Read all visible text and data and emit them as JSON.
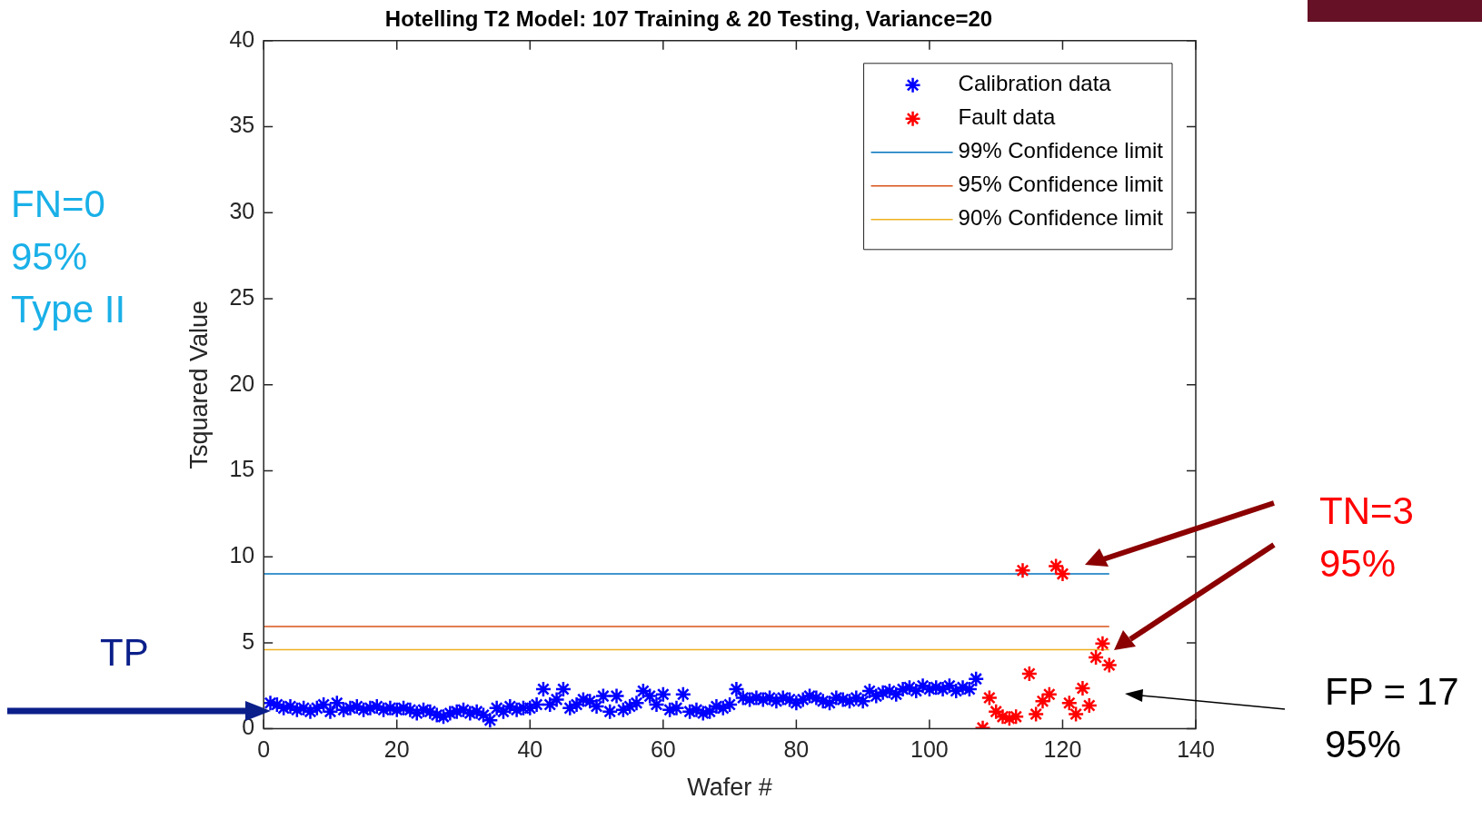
{
  "chart_data": {
    "type": "scatter",
    "title": "Hotelling T2 Model: 107 Training & 20 Testing, Variance=20",
    "xlabel": "Wafer #",
    "ylabel": "Tsquared Value",
    "xlim": [
      0,
      140
    ],
    "xticks": [
      0,
      20,
      40,
      60,
      80,
      100,
      120,
      140
    ],
    "ylim": [
      0,
      40
    ],
    "yticks": [
      0,
      5,
      10,
      15,
      20,
      25,
      30,
      35,
      40
    ],
    "legend": "top right",
    "series": [
      {
        "name": "Calibration data",
        "type": "scatter",
        "marker": "cross",
        "color": "#0000ff",
        "x": [
          1,
          2,
          3,
          4,
          5,
          6,
          7,
          8,
          9,
          10,
          11,
          12,
          13,
          14,
          15,
          16,
          17,
          18,
          19,
          20,
          21,
          22,
          23,
          24,
          25,
          26,
          27,
          28,
          29,
          30,
          31,
          32,
          33,
          34,
          35,
          36,
          37,
          38,
          39,
          40,
          41,
          42,
          43,
          44,
          45,
          46,
          47,
          48,
          49,
          50,
          51,
          52,
          53,
          54,
          55,
          56,
          57,
          58,
          59,
          60,
          61,
          62,
          63,
          64,
          65,
          66,
          67,
          68,
          69,
          70,
          71,
          72,
          73,
          74,
          75,
          76,
          77,
          78,
          79,
          80,
          81,
          82,
          83,
          84,
          85,
          86,
          87,
          88,
          89,
          90,
          91,
          92,
          93,
          94,
          95,
          96,
          97,
          98,
          99,
          100,
          101,
          102,
          103,
          104,
          105,
          106,
          107
        ],
        "values": [
          1.5,
          1.4,
          1.2,
          1.3,
          1.1,
          1.2,
          1.0,
          1.2,
          1.4,
          1.0,
          1.5,
          1.1,
          1.2,
          1.3,
          1.1,
          1.2,
          1.3,
          1.1,
          1.2,
          1.1,
          1.2,
          1.1,
          0.9,
          1.1,
          1.0,
          0.8,
          0.7,
          0.9,
          1.0,
          1.1,
          0.9,
          1.0,
          0.8,
          0.5,
          1.2,
          1.0,
          1.3,
          1.1,
          1.2,
          1.2,
          1.4,
          2.3,
          1.4,
          1.7,
          2.3,
          1.2,
          1.4,
          1.7,
          1.6,
          1.3,
          1.9,
          1.0,
          1.9,
          1.1,
          1.3,
          1.5,
          2.2,
          1.9,
          1.4,
          2.0,
          1.1,
          1.2,
          2.0,
          1.0,
          1.1,
          0.9,
          1.0,
          1.3,
          1.2,
          1.4,
          2.3,
          1.8,
          1.7,
          1.8,
          1.7,
          1.8,
          1.6,
          1.8,
          1.7,
          1.5,
          1.7,
          1.9,
          1.8,
          1.6,
          1.5,
          1.8,
          1.7,
          1.6,
          1.8,
          1.6,
          2.2,
          1.9,
          2.1,
          2.2,
          2.0,
          2.3,
          2.4,
          2.2,
          2.5,
          2.3,
          2.4,
          2.3,
          2.5,
          2.2,
          2.4,
          2.3,
          2.9
        ]
      },
      {
        "name": "Fault data",
        "type": "scatter",
        "marker": "cross",
        "color": "#ff0000",
        "x": [
          108,
          109,
          110,
          111,
          112,
          113,
          114,
          115,
          116,
          117,
          118,
          119,
          120,
          121,
          122,
          123,
          124,
          125,
          126,
          127
        ],
        "values": [
          0.05,
          1.8,
          1.0,
          0.7,
          0.6,
          0.7,
          9.2,
          3.2,
          0.85,
          1.6,
          2.0,
          9.45,
          9.0,
          1.5,
          0.85,
          2.35,
          1.35,
          4.15,
          4.95,
          3.7
        ]
      },
      {
        "name": "99% Confidence limit",
        "type": "line",
        "marker": "none",
        "color": "#0072bd",
        "x": [
          0,
          127
        ],
        "values": [
          9.0,
          9.0
        ]
      },
      {
        "name": "95% Confidence limit",
        "type": "line",
        "marker": "none",
        "color": "#d95319",
        "x": [
          0,
          127
        ],
        "values": [
          5.95,
          5.95
        ]
      },
      {
        "name": "90% Confidence limit",
        "type": "line",
        "marker": "none",
        "color": "#edb120",
        "x": [
          0,
          127
        ],
        "values": [
          4.6,
          4.6
        ]
      }
    ],
    "annotations": [
      "FN=0\n95%\nType II",
      "TP",
      "TN=3\n95%",
      "FP = 17\n95%"
    ]
  }
}
